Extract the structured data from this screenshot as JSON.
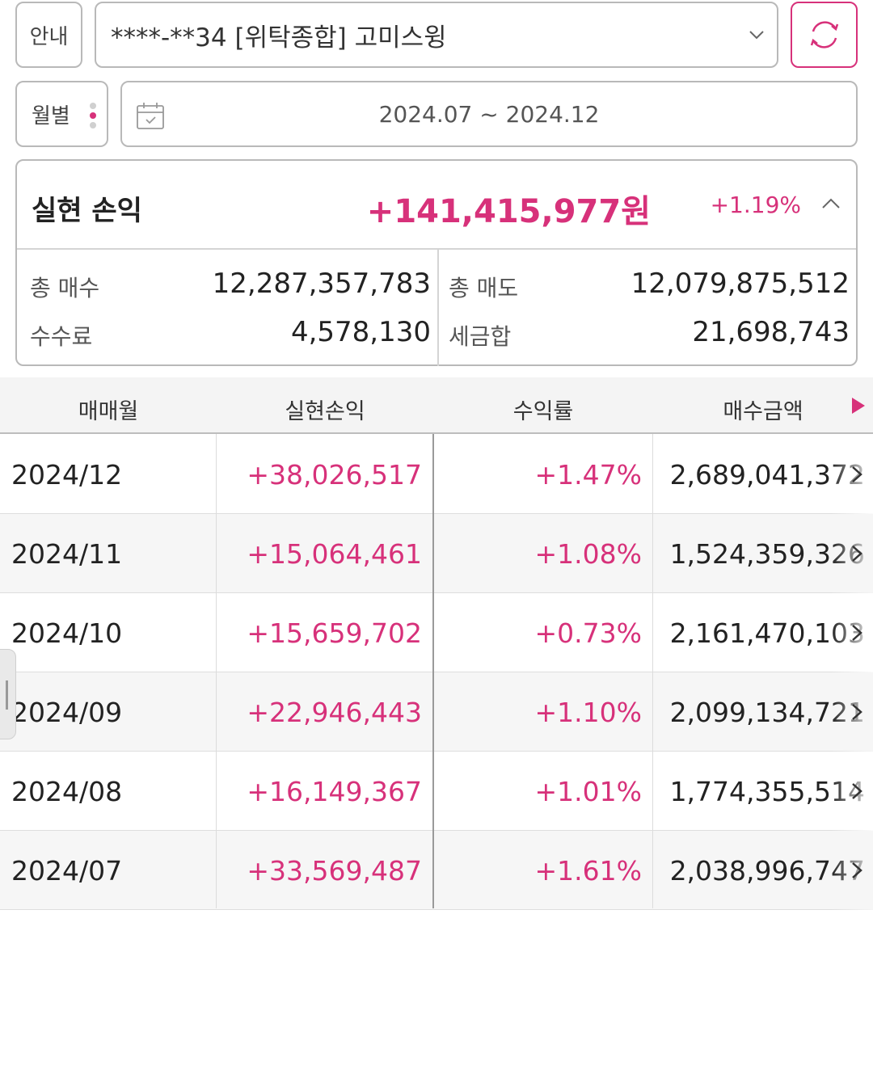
{
  "header": {
    "info_label": "안내",
    "account_label": "****-**34 [위탁종합] 고미스윙",
    "refresh_icon": "refresh-icon"
  },
  "period": {
    "mode_label": "월별",
    "date_range": "2024.07 ~ 2024.12"
  },
  "summary": {
    "title": "실현 손익",
    "amount": "+141,415,977원",
    "rate": "+1.19%",
    "total_buy_label": "총 매수",
    "total_buy_value": "12,287,357,783",
    "total_sell_label": "총 매도",
    "total_sell_value": "12,079,875,512",
    "fee_label": "수수료",
    "fee_value": "4,578,130",
    "tax_label": "세금합",
    "tax_value": "21,698,743"
  },
  "table": {
    "headers": [
      "매매월",
      "실현손익",
      "수익률",
      "매수금액"
    ],
    "rows": [
      {
        "month": "2024/12",
        "profit": "+38,026,517",
        "rate": "+1.47%",
        "buy": "2,689,041,372"
      },
      {
        "month": "2024/11",
        "profit": "+15,064,461",
        "rate": "+1.08%",
        "buy": "1,524,359,326"
      },
      {
        "month": "2024/10",
        "profit": "+15,659,702",
        "rate": "+0.73%",
        "buy": "2,161,470,103"
      },
      {
        "month": "2024/09",
        "profit": "+22,946,443",
        "rate": "+1.10%",
        "buy": "2,099,134,721"
      },
      {
        "month": "2024/08",
        "profit": "+16,149,367",
        "rate": "+1.01%",
        "buy": "1,774,355,514"
      },
      {
        "month": "2024/07",
        "profit": "+33,569,487",
        "rate": "+1.61%",
        "buy": "2,038,996,747"
      }
    ]
  },
  "colors": {
    "accent": "#d7317a",
    "border": "#b9b9b9"
  }
}
